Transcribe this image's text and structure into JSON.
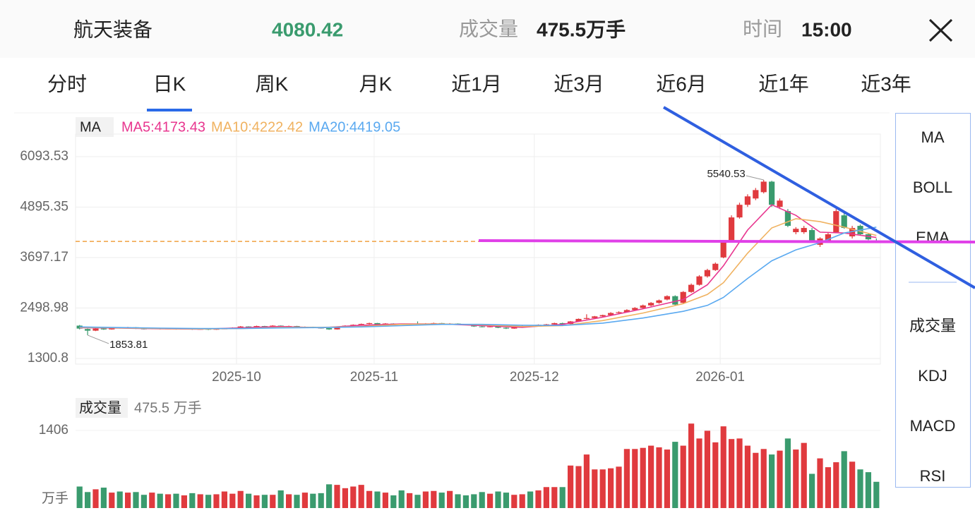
{
  "header": {
    "name": "航天装备",
    "price": "4080.42",
    "volume_label": "成交量",
    "volume": "475.5万手",
    "time_label": "时间",
    "time": "15:00"
  },
  "tabs": [
    "分时",
    "日K",
    "周K",
    "月K",
    "近1月",
    "近3月",
    "近6月",
    "近1年",
    "近3年"
  ],
  "indicators": {
    "main": [
      "MA",
      "BOLL",
      "EMA"
    ],
    "sub": [
      "成交量",
      "KDJ",
      "MACD",
      "RSI"
    ]
  },
  "chart_data": [
    {
      "type": "candlestick",
      "legend_title": "MA",
      "up_color": "#e03a3e",
      "down_color": "#3a9b6e",
      "last_line_color": "#f0a040",
      "xlim": [
        -0.5,
        99.5
      ],
      "ylim": [
        1166,
        6630
      ],
      "yticks": [
        6093.53,
        4895.35,
        3697.17,
        2498.98,
        1300.8
      ],
      "xticks": [
        {
          "value": 19.5,
          "label": "2025-10"
        },
        {
          "value": 36.6,
          "label": "2025-11"
        },
        {
          "value": 56.5,
          "label": "2025-12"
        },
        {
          "value": 79.6,
          "label": "2026-01"
        }
      ],
      "grid": true,
      "candles": [
        [
          2080,
          2095,
          1990,
          2010
        ],
        [
          2000,
          2010,
          1853.81,
          1960
        ],
        [
          1960,
          2020,
          1950,
          2010
        ],
        [
          2010,
          2020,
          1980,
          1990
        ],
        [
          1990,
          2040,
          1985,
          2030
        ],
        [
          2030,
          2045,
          2010,
          2020
        ],
        [
          2020,
          2050,
          2015,
          2040
        ],
        [
          2040,
          2045,
          2000,
          2010
        ],
        [
          2010,
          2020,
          1990,
          2000
        ],
        [
          2000,
          2025,
          1995,
          2015
        ],
        [
          2015,
          2020,
          1990,
          2000
        ],
        [
          2000,
          2020,
          1995,
          2010
        ],
        [
          2010,
          2015,
          1985,
          1995
        ],
        [
          1995,
          2015,
          1990,
          2005
        ],
        [
          2005,
          2010,
          1980,
          1990
        ],
        [
          1990,
          2010,
          1985,
          2000
        ],
        [
          2000,
          2005,
          1975,
          1985
        ],
        [
          1985,
          2010,
          1980,
          2000
        ],
        [
          2000,
          2020,
          1995,
          2010
        ],
        [
          2010,
          2040,
          2005,
          2030
        ],
        [
          2030,
          2070,
          2025,
          2060
        ],
        [
          2060,
          2065,
          2030,
          2040
        ],
        [
          2040,
          2080,
          2035,
          2070
        ],
        [
          2070,
          2075,
          2040,
          2050
        ],
        [
          2050,
          2090,
          2045,
          2080
        ],
        [
          2080,
          2085,
          2050,
          2060
        ],
        [
          2060,
          2080,
          2050,
          2070
        ],
        [
          2070,
          2075,
          2030,
          2040
        ],
        [
          2040,
          2060,
          2035,
          2050
        ],
        [
          2050,
          2055,
          2020,
          2030
        ],
        [
          2030,
          2040,
          2010,
          2020
        ],
        [
          2020,
          2025,
          1980,
          1990
        ],
        [
          1990,
          2050,
          1985,
          2040
        ],
        [
          2040,
          2090,
          2035,
          2080
        ],
        [
          2080,
          2110,
          2070,
          2100
        ],
        [
          2100,
          2130,
          2090,
          2120
        ],
        [
          2120,
          2150,
          2110,
          2140
        ],
        [
          2140,
          2145,
          2100,
          2110
        ],
        [
          2110,
          2140,
          2100,
          2130
        ],
        [
          2130,
          2135,
          2105,
          2115
        ],
        [
          2115,
          2120,
          2100,
          2110
        ],
        [
          2110,
          2130,
          2100,
          2120
        ],
        [
          2120,
          2180,
          2100,
          2110
        ],
        [
          2110,
          2140,
          2105,
          2130
        ],
        [
          2130,
          2150,
          2120,
          2140
        ],
        [
          2140,
          2145,
          2110,
          2120
        ],
        [
          2120,
          2140,
          2110,
          2130
        ],
        [
          2130,
          2135,
          2100,
          2110
        ],
        [
          2110,
          2115,
          2090,
          2100
        ],
        [
          2100,
          2105,
          2050,
          2060
        ],
        [
          2060,
          2070,
          2040,
          2050
        ],
        [
          2050,
          2070,
          2040,
          2060
        ],
        [
          2060,
          2065,
          2020,
          2030
        ],
        [
          2030,
          2040,
          2000,
          2010
        ],
        [
          2010,
          2050,
          2005,
          2040
        ],
        [
          2040,
          2080,
          2030,
          2070
        ],
        [
          2070,
          2075,
          2050,
          2060
        ],
        [
          2060,
          2110,
          2055,
          2100
        ],
        [
          2100,
          2120,
          2090,
          2110
        ],
        [
          2110,
          2150,
          2100,
          2140
        ],
        [
          2140,
          2150,
          2110,
          2120
        ],
        [
          2120,
          2190,
          2110,
          2180
        ],
        [
          2180,
          2250,
          2170,
          2240
        ],
        [
          2240,
          2350,
          2230,
          2260
        ],
        [
          2260,
          2310,
          2240,
          2300
        ],
        [
          2300,
          2340,
          2280,
          2330
        ],
        [
          2330,
          2400,
          2320,
          2380
        ],
        [
          2380,
          2420,
          2360,
          2400
        ],
        [
          2400,
          2470,
          2390,
          2450
        ],
        [
          2450,
          2520,
          2440,
          2500
        ],
        [
          2500,
          2580,
          2490,
          2560
        ],
        [
          2560,
          2640,
          2540,
          2620
        ],
        [
          2620,
          2700,
          2600,
          2680
        ],
        [
          2700,
          2800,
          2680,
          2780
        ],
        [
          2780,
          2800,
          2560,
          2580
        ],
        [
          2620,
          2900,
          2600,
          2880
        ],
        [
          2880,
          3080,
          2860,
          3050
        ],
        [
          3050,
          3280,
          3030,
          3250
        ],
        [
          3250,
          3430,
          3220,
          3400
        ],
        [
          3400,
          3580,
          3380,
          3550
        ],
        [
          3700,
          4100,
          3680,
          4050
        ],
        [
          4100,
          4700,
          4080,
          4650
        ],
        [
          4650,
          5000,
          4620,
          4950
        ],
        [
          4950,
          5200,
          4900,
          5150
        ],
        [
          5100,
          5350,
          5060,
          5300
        ],
        [
          5250,
          5540.53,
          5220,
          5500
        ],
        [
          5500,
          5520,
          4900,
          4950
        ],
        [
          4900,
          5100,
          4850,
          5050
        ],
        [
          4800,
          4850,
          4420,
          4450
        ],
        [
          4300,
          4420,
          4250,
          4380
        ],
        [
          4300,
          4450,
          4260,
          4400
        ],
        [
          4350,
          4400,
          4050,
          4100
        ],
        [
          4000,
          4180,
          3950,
          4150
        ],
        [
          4100,
          4300,
          4050,
          4250
        ],
        [
          4300,
          4850,
          4280,
          4800
        ],
        [
          4700,
          4750,
          4380,
          4400
        ],
        [
          4200,
          4450,
          4150,
          4400
        ],
        [
          4450,
          4480,
          4230,
          4250
        ],
        [
          4250,
          4280,
          4110,
          4130
        ],
        [
          4100,
          4150,
          4050,
          4080.42
        ]
      ],
      "series": [
        {
          "name": "MA5:4173.43",
          "color": "#e8368f",
          "x": [
            0,
            5,
            10,
            15,
            20,
            25,
            30,
            35,
            40,
            45,
            50,
            55,
            60,
            65,
            70,
            75,
            78,
            80,
            83,
            86,
            89,
            92,
            95,
            99
          ],
          "values": [
            2030,
            2020,
            2005,
            1995,
            2030,
            2060,
            2030,
            2090,
            2120,
            2120,
            2080,
            2040,
            2110,
            2280,
            2480,
            2700,
            3050,
            3500,
            4350,
            4950,
            4700,
            4300,
            4280,
            4173.43
          ]
        },
        {
          "name": "MA10:4222.42",
          "color": "#f0b260",
          "x": [
            0,
            5,
            10,
            15,
            20,
            25,
            30,
            35,
            40,
            45,
            50,
            55,
            60,
            65,
            70,
            75,
            78,
            80,
            83,
            86,
            89,
            92,
            95,
            99
          ],
          "values": [
            2040,
            2025,
            2010,
            2000,
            2010,
            2040,
            2040,
            2060,
            2110,
            2120,
            2100,
            2060,
            2080,
            2200,
            2380,
            2600,
            2820,
            3100,
            3800,
            4400,
            4620,
            4550,
            4420,
            4222.42
          ]
        },
        {
          "name": "MA20:4419.05",
          "color": "#5aa9f0",
          "x": [
            0,
            5,
            10,
            15,
            20,
            25,
            30,
            35,
            40,
            45,
            50,
            55,
            60,
            65,
            70,
            75,
            78,
            80,
            83,
            86,
            89,
            92,
            95,
            99
          ],
          "values": [
            2050,
            2035,
            2020,
            2010,
            2010,
            2025,
            2035,
            2050,
            2080,
            2110,
            2110,
            2090,
            2085,
            2140,
            2260,
            2420,
            2560,
            2750,
            3200,
            3620,
            3880,
            4050,
            4280,
            4419.05
          ]
        }
      ]
    },
    {
      "type": "bar",
      "title": "成交量",
      "subtitle": "475.5 万手",
      "unit": "万手",
      "xlim": [
        -0.5,
        99.5
      ],
      "ylim": [
        0,
        1559
      ],
      "yticks": [
        1406
      ],
      "values": [
        390,
        290,
        340,
        370,
        280,
        300,
        280,
        290,
        240,
        280,
        260,
        250,
        260,
        230,
        270,
        250,
        240,
        250,
        300,
        260,
        310,
        260,
        230,
        240,
        240,
        320,
        250,
        240,
        280,
        260,
        270,
        430,
        420,
        360,
        390,
        420,
        310,
        300,
        280,
        230,
        320,
        270,
        240,
        300,
        310,
        280,
        310,
        250,
        230,
        250,
        290,
        260,
        300,
        280,
        240,
        250,
        300,
        320,
        380,
        380,
        380,
        770,
        760,
        970,
        700,
        700,
        720,
        750,
        1070,
        1070,
        1090,
        1130,
        1100,
        1060,
        1200,
        1130,
        1530,
        1260,
        1400,
        1190,
        1480,
        1250,
        1260,
        1130,
        1000,
        1070,
        970,
        1040,
        1260,
        1060,
        1180,
        620,
        900,
        740,
        830,
        1030,
        840,
        700,
        650,
        475.5
      ]
    }
  ]
}
